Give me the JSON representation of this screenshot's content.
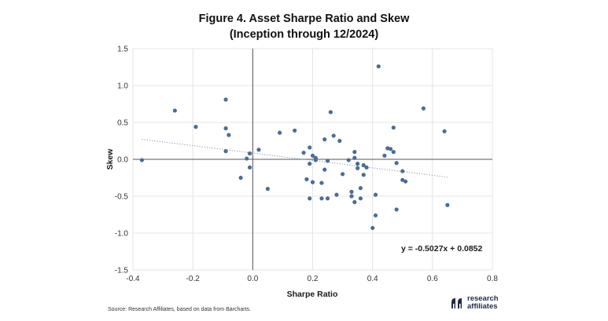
{
  "title": {
    "line1": "Figure 4. Asset Sharpe Ratio and Skew",
    "line2": "(Inception through 12/2024)"
  },
  "source": "Source: Research Affiliates, based on data from Barcharts.",
  "logo": {
    "line1": "research",
    "line2": "affiliates"
  },
  "colors": {
    "points": "#4a6d96",
    "trend": "#7d96b8",
    "grid": "#e4e4e4",
    "axis": "#555555"
  },
  "chart_data": {
    "type": "scatter",
    "xlabel": "Sharpe Ratio",
    "ylabel": "Skew",
    "xlim": [
      -0.4,
      0.8
    ],
    "ylim": [
      -1.5,
      1.5
    ],
    "xticks": [
      -0.4,
      -0.2,
      0.0,
      0.2,
      0.4,
      0.6,
      0.8
    ],
    "xtick_labels": [
      "-0.4",
      "-0.2",
      "0.0",
      "0.2",
      "0.4",
      "0.6",
      "0.8"
    ],
    "yticks": [
      1.5,
      1.0,
      0.5,
      0.0,
      -0.5,
      -1.0,
      -1.5
    ],
    "ytick_labels": [
      "1.5",
      "1.0",
      "0.5",
      "0.0",
      "-0.5",
      "-1.0",
      "-1.5"
    ],
    "grid": true,
    "trendline": {
      "slope": -0.5027,
      "intercept": 0.0852,
      "x_range": [
        -0.37,
        0.65
      ],
      "style": "dotted"
    },
    "equation_label": "y = -0.5027x + 0.0852",
    "points": [
      [
        -0.37,
        -0.01
      ],
      [
        -0.26,
        0.66
      ],
      [
        -0.19,
        0.44
      ],
      [
        -0.09,
        0.81
      ],
      [
        -0.09,
        0.42
      ],
      [
        -0.08,
        0.33
      ],
      [
        -0.09,
        0.11
      ],
      [
        -0.04,
        -0.25
      ],
      [
        -0.02,
        0.01
      ],
      [
        -0.01,
        0.08
      ],
      [
        -0.01,
        -0.11
      ],
      [
        0.02,
        0.13
      ],
      [
        0.05,
        -0.4
      ],
      [
        0.09,
        0.36
      ],
      [
        0.14,
        0.39
      ],
      [
        0.17,
        0.09
      ],
      [
        0.18,
        -0.27
      ],
      [
        0.19,
        0.16
      ],
      [
        0.19,
        -0.06
      ],
      [
        0.19,
        -0.53
      ],
      [
        0.2,
        -0.31
      ],
      [
        0.2,
        0.05
      ],
      [
        0.21,
        0.02
      ],
      [
        0.21,
        -0.01
      ],
      [
        0.23,
        -0.32
      ],
      [
        0.23,
        -0.53
      ],
      [
        0.24,
        0.27
      ],
      [
        0.24,
        -0.14
      ],
      [
        0.25,
        -0.53
      ],
      [
        0.25,
        -0.02
      ],
      [
        0.26,
        0.64
      ],
      [
        0.27,
        0.32
      ],
      [
        0.28,
        -0.48
      ],
      [
        0.29,
        0.25
      ],
      [
        0.3,
        -0.2
      ],
      [
        0.32,
        -0.01
      ],
      [
        0.33,
        -0.44
      ],
      [
        0.33,
        -0.5
      ],
      [
        0.34,
        -0.58
      ],
      [
        0.34,
        0.02
      ],
      [
        0.34,
        0.1
      ],
      [
        0.35,
        -0.06
      ],
      [
        0.35,
        -0.12
      ],
      [
        0.36,
        -0.53
      ],
      [
        0.36,
        -0.39
      ],
      [
        0.37,
        -0.08
      ],
      [
        0.37,
        -0.21
      ],
      [
        0.38,
        -0.11
      ],
      [
        0.4,
        -0.93
      ],
      [
        0.41,
        -0.76
      ],
      [
        0.41,
        -0.48
      ],
      [
        0.42,
        1.26
      ],
      [
        0.44,
        0.05
      ],
      [
        0.45,
        0.15
      ],
      [
        0.46,
        0.14
      ],
      [
        0.47,
        0.1
      ],
      [
        0.47,
        0.43
      ],
      [
        0.48,
        -0.05
      ],
      [
        0.48,
        -0.68
      ],
      [
        0.5,
        -0.16
      ],
      [
        0.5,
        -0.28
      ],
      [
        0.51,
        -0.3
      ],
      [
        0.57,
        0.69
      ],
      [
        0.64,
        0.38
      ],
      [
        0.65,
        -0.62
      ]
    ]
  }
}
